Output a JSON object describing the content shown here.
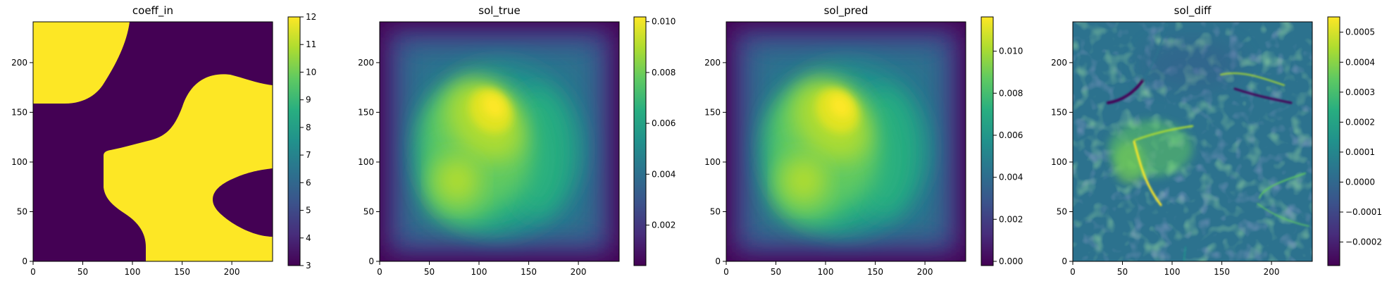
{
  "chart_data": [
    {
      "type": "heatmap",
      "title": "coeff_in",
      "x_ticks": [
        "0",
        "50",
        "100",
        "150",
        "200"
      ],
      "y_ticks": [
        "0",
        "50",
        "100",
        "150",
        "200"
      ],
      "xlim": [
        0,
        241
      ],
      "ylim": [
        0,
        241
      ],
      "colormap": "viridis",
      "colorbar_range": [
        3,
        12
      ],
      "colorbar_ticks": [
        "3",
        "4",
        "5",
        "6",
        "7",
        "8",
        "9",
        "10",
        "11",
        "12"
      ],
      "field": "binary piecewise-constant coefficient (values 3 and 12)"
    },
    {
      "type": "heatmap",
      "title": "sol_true",
      "x_ticks": [
        "0",
        "50",
        "100",
        "150",
        "200"
      ],
      "y_ticks": [
        "0",
        "50",
        "100",
        "150",
        "200"
      ],
      "xlim": [
        0,
        241
      ],
      "ylim": [
        0,
        241
      ],
      "colormap": "viridis",
      "colorbar_range": [
        0.0003,
        0.0117
      ],
      "colorbar_ticks": [
        "0.002",
        "0.004",
        "0.006",
        "0.008",
        "0.010"
      ],
      "field": "smooth solution, zero on boundary, peak near (110, 150)"
    },
    {
      "type": "heatmap",
      "title": "sol_pred",
      "x_ticks": [
        "0",
        "50",
        "100",
        "150",
        "200"
      ],
      "y_ticks": [
        "0",
        "50",
        "100",
        "150",
        "200"
      ],
      "xlim": [
        0,
        241
      ],
      "ylim": [
        0,
        241
      ],
      "colormap": "viridis",
      "colorbar_range": [
        -0.0002,
        0.0117
      ],
      "colorbar_ticks": [
        "0.000",
        "0.002",
        "0.004",
        "0.006",
        "0.008",
        "0.010"
      ],
      "field": "predicted solution, visually matches sol_true"
    },
    {
      "type": "heatmap",
      "title": "sol_diff",
      "x_ticks": [
        "0",
        "50",
        "100",
        "150",
        "200"
      ],
      "y_ticks": [
        "0",
        "50",
        "100",
        "150",
        "200"
      ],
      "xlim": [
        0,
        241
      ],
      "ylim": [
        0,
        241
      ],
      "colormap": "viridis",
      "colorbar_range": [
        -0.00028,
        0.00055
      ],
      "colorbar_ticks": [
        "−0.0002",
        "−0.0001",
        "0.0000",
        "0.0001",
        "0.0002",
        "0.0003",
        "0.0004",
        "0.0005"
      ],
      "field": "noisy residual, largest along coefficient interfaces"
    }
  ]
}
